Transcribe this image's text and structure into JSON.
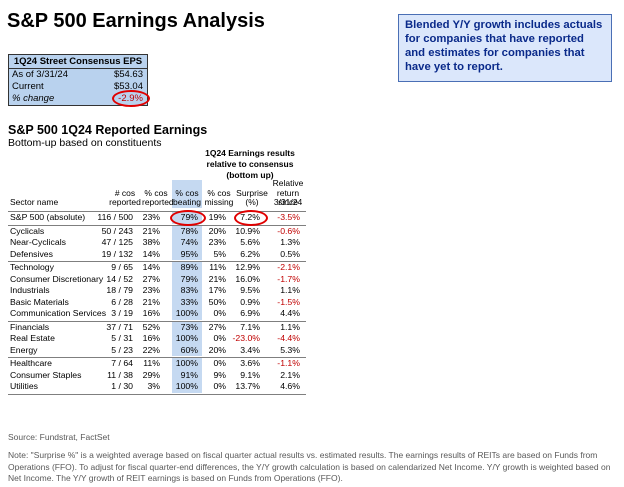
{
  "title": "S&P 500 Earnings Analysis",
  "callout": "Blended Y/Y growth includes actuals for companies that have reported and estimates for companies that have yet to report.",
  "eps_box": {
    "header": "1Q24 Street Consensus EPS",
    "rows": [
      {
        "label": "As of 3/31/24",
        "value": "$54.63"
      },
      {
        "label": "Current",
        "value": "$53.04"
      },
      {
        "label": "% change",
        "value": "-2.9%"
      }
    ]
  },
  "section_title": "S&P 500 1Q24 Reported Earnings",
  "section_subtitle": "Bottom-up based on constituents",
  "results_header": "1Q24 Earnings results relative to consensus (bottom up)",
  "columns": [
    {
      "line1": "",
      "line2": "",
      "line3": "Sector name"
    },
    {
      "line1": "",
      "line2": "# cos",
      "line3": "reported"
    },
    {
      "line1": "",
      "line2": "% cos",
      "line3": "reported"
    },
    {
      "line1": "",
      "line2": "% cos",
      "line3": "beating"
    },
    {
      "line1": "",
      "line2": "% cos",
      "line3": "missing"
    },
    {
      "line1": "",
      "line2": "Surprise",
      "line3": "(%)"
    },
    {
      "line1": "Relative",
      "line2": "return since",
      "line3": "3/31/24"
    }
  ],
  "rows": [
    {
      "name": "S&P 500 (absolute)",
      "reported": "116 / 500",
      "pct_reported": "23%",
      "beating": "79%",
      "missing": "19%",
      "surprise": "7.2%",
      "relret": "-3.5%"
    },
    {
      "name": "Cyclicals",
      "reported": "50 / 243",
      "pct_reported": "21%",
      "beating": "78%",
      "missing": "20%",
      "surprise": "10.9%",
      "relret": "-0.6%"
    },
    {
      "name": "Near-Cyclicals",
      "reported": "47 / 125",
      "pct_reported": "38%",
      "beating": "74%",
      "missing": "23%",
      "surprise": "5.6%",
      "relret": "1.3%"
    },
    {
      "name": "Defensives",
      "reported": "19 / 132",
      "pct_reported": "14%",
      "beating": "95%",
      "missing": "5%",
      "surprise": "6.2%",
      "relret": "0.5%"
    },
    {
      "name": "Technology",
      "reported": "9 / 65",
      "pct_reported": "14%",
      "beating": "89%",
      "missing": "11%",
      "surprise": "12.9%",
      "relret": "-2.1%"
    },
    {
      "name": "Consumer Discretionary",
      "reported": "14 / 52",
      "pct_reported": "27%",
      "beating": "79%",
      "missing": "21%",
      "surprise": "16.0%",
      "relret": "-1.7%"
    },
    {
      "name": "Industrials",
      "reported": "18 / 79",
      "pct_reported": "23%",
      "beating": "83%",
      "missing": "17%",
      "surprise": "9.5%",
      "relret": "1.1%"
    },
    {
      "name": "Basic Materials",
      "reported": "6 / 28",
      "pct_reported": "21%",
      "beating": "33%",
      "missing": "50%",
      "surprise": "0.9%",
      "relret": "-1.5%"
    },
    {
      "name": "Communication Services",
      "reported": "3 / 19",
      "pct_reported": "16%",
      "beating": "100%",
      "missing": "0%",
      "surprise": "6.9%",
      "relret": "4.4%"
    },
    {
      "name": "Financials",
      "reported": "37 / 71",
      "pct_reported": "52%",
      "beating": "73%",
      "missing": "27%",
      "surprise": "7.1%",
      "relret": "1.1%"
    },
    {
      "name": "Real Estate",
      "reported": "5 / 31",
      "pct_reported": "16%",
      "beating": "100%",
      "missing": "0%",
      "surprise": "-23.0%",
      "relret": "-4.4%"
    },
    {
      "name": "Energy",
      "reported": "5 / 23",
      "pct_reported": "22%",
      "beating": "60%",
      "missing": "20%",
      "surprise": "3.4%",
      "relret": "5.3%"
    },
    {
      "name": "Healthcare",
      "reported": "7 / 64",
      "pct_reported": "11%",
      "beating": "100%",
      "missing": "0%",
      "surprise": "3.6%",
      "relret": "-1.1%"
    },
    {
      "name": "Consumer Staples",
      "reported": "11 / 38",
      "pct_reported": "29%",
      "beating": "91%",
      "missing": "9%",
      "surprise": "9.1%",
      "relret": "2.1%"
    },
    {
      "name": "Utilities",
      "reported": "1 / 30",
      "pct_reported": "3%",
      "beating": "100%",
      "missing": "0%",
      "surprise": "13.7%",
      "relret": "4.6%"
    }
  ],
  "source": "Source: Fundstrat, FactSet",
  "note": "Note: \"Surprise %\" is a weighted average based on fiscal quarter actual results vs. estimated results. The earnings results of REITs are based on Funds from Operations (FFO). To adjust for fiscal quarter-end differences, the Y/Y growth calculation is based on calendarized Net Income. Y/Y growth is weighted based on Net Income. The Y/Y growth of REIT earnings is based on Funds from Operations (FFO).",
  "colors": {
    "highlight": "#c5d9f1",
    "negative": "#c00000",
    "callout_bg": "#dbe7fb",
    "callout_text": "#0a2a8a",
    "circle": "#e00000"
  }
}
